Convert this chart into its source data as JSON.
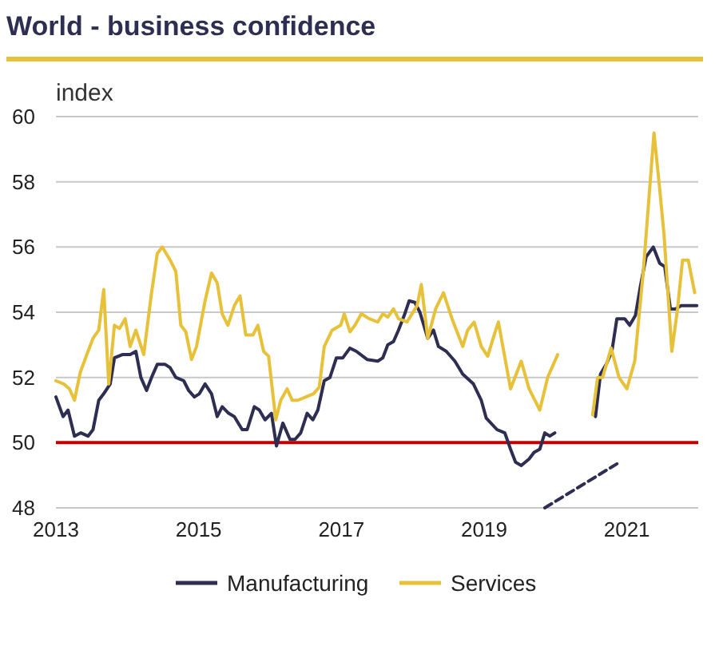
{
  "chart_data": {
    "type": "line",
    "title": "World - business confidence",
    "ylabel": "index",
    "xlim": [
      2013,
      2022
    ],
    "xticks": [
      2013,
      2015,
      2017,
      2019,
      2021
    ],
    "ylim": [
      48,
      60
    ],
    "yticks": [
      48,
      50,
      52,
      54,
      56,
      58,
      60
    ],
    "grid": "y",
    "legend": "bottom",
    "ref_lines": [
      {
        "axis": "y",
        "value": 50,
        "color": "#c00000"
      }
    ],
    "series": [
      {
        "name": "Manufacturing",
        "color": "#2e2d52",
        "x": [
          2013.0,
          2013.1,
          2013.17,
          2013.26,
          2013.35,
          2013.45,
          2013.52,
          2013.6,
          2013.67,
          2013.76,
          2013.82,
          2013.93,
          2014.04,
          2014.12,
          2014.19,
          2014.27,
          2014.34,
          2014.42,
          2014.53,
          2014.6,
          2014.68,
          2014.79,
          2014.86,
          2014.94,
          2015.01,
          2015.09,
          2015.18,
          2015.26,
          2015.33,
          2015.42,
          2015.5,
          2015.61,
          2015.68,
          2015.78,
          2015.85,
          2015.93,
          2016.02,
          2016.09,
          2016.18,
          2016.28,
          2016.35,
          2016.43,
          2016.52,
          2016.6,
          2016.67,
          2016.76,
          2016.84,
          2016.93,
          2017.02,
          2017.12,
          2017.21,
          2017.36,
          2017.51,
          2017.58,
          2017.65,
          2017.73,
          2017.8,
          2017.88,
          2017.95,
          2018.03,
          2018.1,
          2018.21,
          2018.29,
          2018.36,
          2018.47,
          2018.59,
          2018.7,
          2018.85,
          2018.96,
          2019.03,
          2019.18,
          2019.29,
          2019.37,
          2019.44,
          2019.52,
          2019.63,
          2019.7,
          2019.78,
          2019.85,
          2019.92,
          2019.99,
          2020.3,
          2020.56,
          2020.63,
          2020.71,
          2020.79,
          2020.86,
          2020.97,
          2021.04,
          2021.12,
          2021.19,
          2021.27,
          2021.37,
          2021.46,
          2021.53,
          2021.61,
          2021.68,
          2021.76,
          2021.98
        ],
        "values": [
          51.4,
          50.8,
          51.0,
          50.2,
          50.3,
          50.2,
          50.4,
          51.3,
          51.5,
          51.8,
          52.6,
          52.7,
          52.7,
          52.8,
          52.0,
          51.6,
          52.0,
          52.4,
          52.4,
          52.3,
          52.0,
          51.9,
          51.6,
          51.4,
          51.5,
          51.8,
          51.5,
          50.8,
          51.1,
          50.9,
          50.8,
          50.4,
          50.4,
          51.1,
          51.0,
          50.7,
          50.9,
          49.9,
          50.6,
          50.1,
          50.1,
          50.3,
          50.9,
          50.7,
          51.0,
          51.9,
          52.0,
          52.6,
          52.6,
          52.9,
          52.8,
          52.55,
          52.5,
          52.6,
          53.0,
          53.1,
          53.45,
          53.9,
          54.35,
          54.3,
          54.0,
          53.2,
          53.45,
          52.95,
          52.8,
          52.5,
          52.1,
          51.8,
          51.3,
          50.75,
          50.4,
          50.3,
          49.8,
          49.4,
          49.3,
          49.5,
          49.7,
          49.8,
          50.3,
          50.2,
          50.3,
          null,
          50.8,
          52.1,
          52.4,
          52.8,
          53.8,
          53.8,
          53.6,
          53.9,
          54.8,
          55.7,
          56.0,
          55.5,
          55.4,
          54.1,
          54.1,
          54.2,
          54.2
        ]
      },
      {
        "name": "Services",
        "color": "#e8c13a",
        "x": [
          2013.0,
          2013.11,
          2013.19,
          2013.26,
          2013.34,
          2013.45,
          2013.52,
          2013.6,
          2013.67,
          2013.74,
          2013.82,
          2013.89,
          2013.97,
          2014.04,
          2014.12,
          2014.23,
          2014.34,
          2014.42,
          2014.49,
          2014.6,
          2014.68,
          2014.75,
          2014.82,
          2014.9,
          2014.97,
          2015.09,
          2015.18,
          2015.26,
          2015.33,
          2015.41,
          2015.5,
          2015.58,
          2015.66,
          2015.76,
          2015.83,
          2015.91,
          2015.98,
          2016.08,
          2016.15,
          2016.24,
          2016.31,
          2016.39,
          2016.5,
          2016.61,
          2016.69,
          2016.76,
          2016.87,
          2016.99,
          2017.04,
          2017.12,
          2017.19,
          2017.28,
          2017.39,
          2017.51,
          2017.58,
          2017.65,
          2017.73,
          2017.8,
          2017.92,
          2017.99,
          2018.06,
          2018.12,
          2018.21,
          2018.32,
          2018.43,
          2018.55,
          2018.7,
          2018.77,
          2018.86,
          2018.96,
          2019.05,
          2019.14,
          2019.2,
          2019.37,
          2019.52,
          2019.63,
          2019.78,
          2019.89,
          2020.03,
          2020.3,
          2020.52,
          2020.59,
          2020.66,
          2020.78,
          2020.89,
          2021.0,
          2021.11,
          2021.23,
          2021.38,
          2021.45,
          2021.52,
          2021.63,
          2021.71,
          2021.78,
          2021.86,
          2021.95
        ],
        "values": [
          51.9,
          51.8,
          51.65,
          51.3,
          52.15,
          52.8,
          53.2,
          53.45,
          54.7,
          51.8,
          53.6,
          53.5,
          53.8,
          52.95,
          53.45,
          52.7,
          54.6,
          55.8,
          56.0,
          55.6,
          55.25,
          53.6,
          53.4,
          52.55,
          52.95,
          54.35,
          55.2,
          54.9,
          53.95,
          53.6,
          54.2,
          54.5,
          53.3,
          53.3,
          53.6,
          52.8,
          52.65,
          50.7,
          51.3,
          51.65,
          51.3,
          51.3,
          51.4,
          51.5,
          51.7,
          52.95,
          53.45,
          53.6,
          53.95,
          53.4,
          53.6,
          53.95,
          53.8,
          53.7,
          53.95,
          53.85,
          54.1,
          53.8,
          53.7,
          53.95,
          54.2,
          54.85,
          53.2,
          54.1,
          54.6,
          53.8,
          52.95,
          53.45,
          53.7,
          52.95,
          52.65,
          53.3,
          53.7,
          51.65,
          52.5,
          51.65,
          51.0,
          52.0,
          52.7,
          null,
          50.85,
          52.0,
          52.0,
          52.9,
          52.0,
          51.65,
          52.5,
          55.25,
          59.5,
          58.0,
          56.4,
          52.8,
          54.1,
          55.6,
          55.6,
          54.6
        ]
      },
      {
        "color": "#2e2d52",
        "line_style": "dashed",
        "x": [
          2019.85,
          2020.86
        ],
        "values": [
          48,
          49.35
        ]
      }
    ]
  }
}
